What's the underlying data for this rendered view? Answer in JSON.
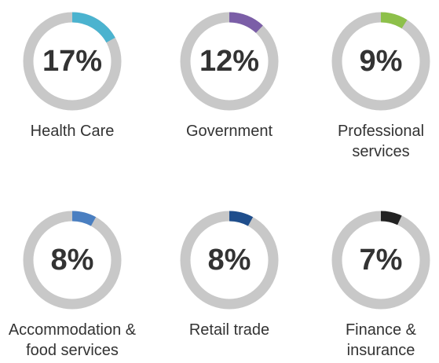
{
  "chart_data": {
    "type": "donut",
    "categories": [
      "Health Care",
      "Government",
      "Professional services",
      "Accommodation & food services",
      "Retail trade",
      "Finance & insurance"
    ],
    "values": [
      17,
      12,
      9,
      8,
      8,
      7
    ],
    "value_labels": [
      "17%",
      "12%",
      "9%",
      "8%",
      "8%",
      "7%"
    ],
    "colors": [
      "#4bb3cf",
      "#7b5ea7",
      "#8dc04a",
      "#4a7fc1",
      "#1f4e8c",
      "#222222"
    ],
    "ylim": [
      0,
      100
    ]
  }
}
